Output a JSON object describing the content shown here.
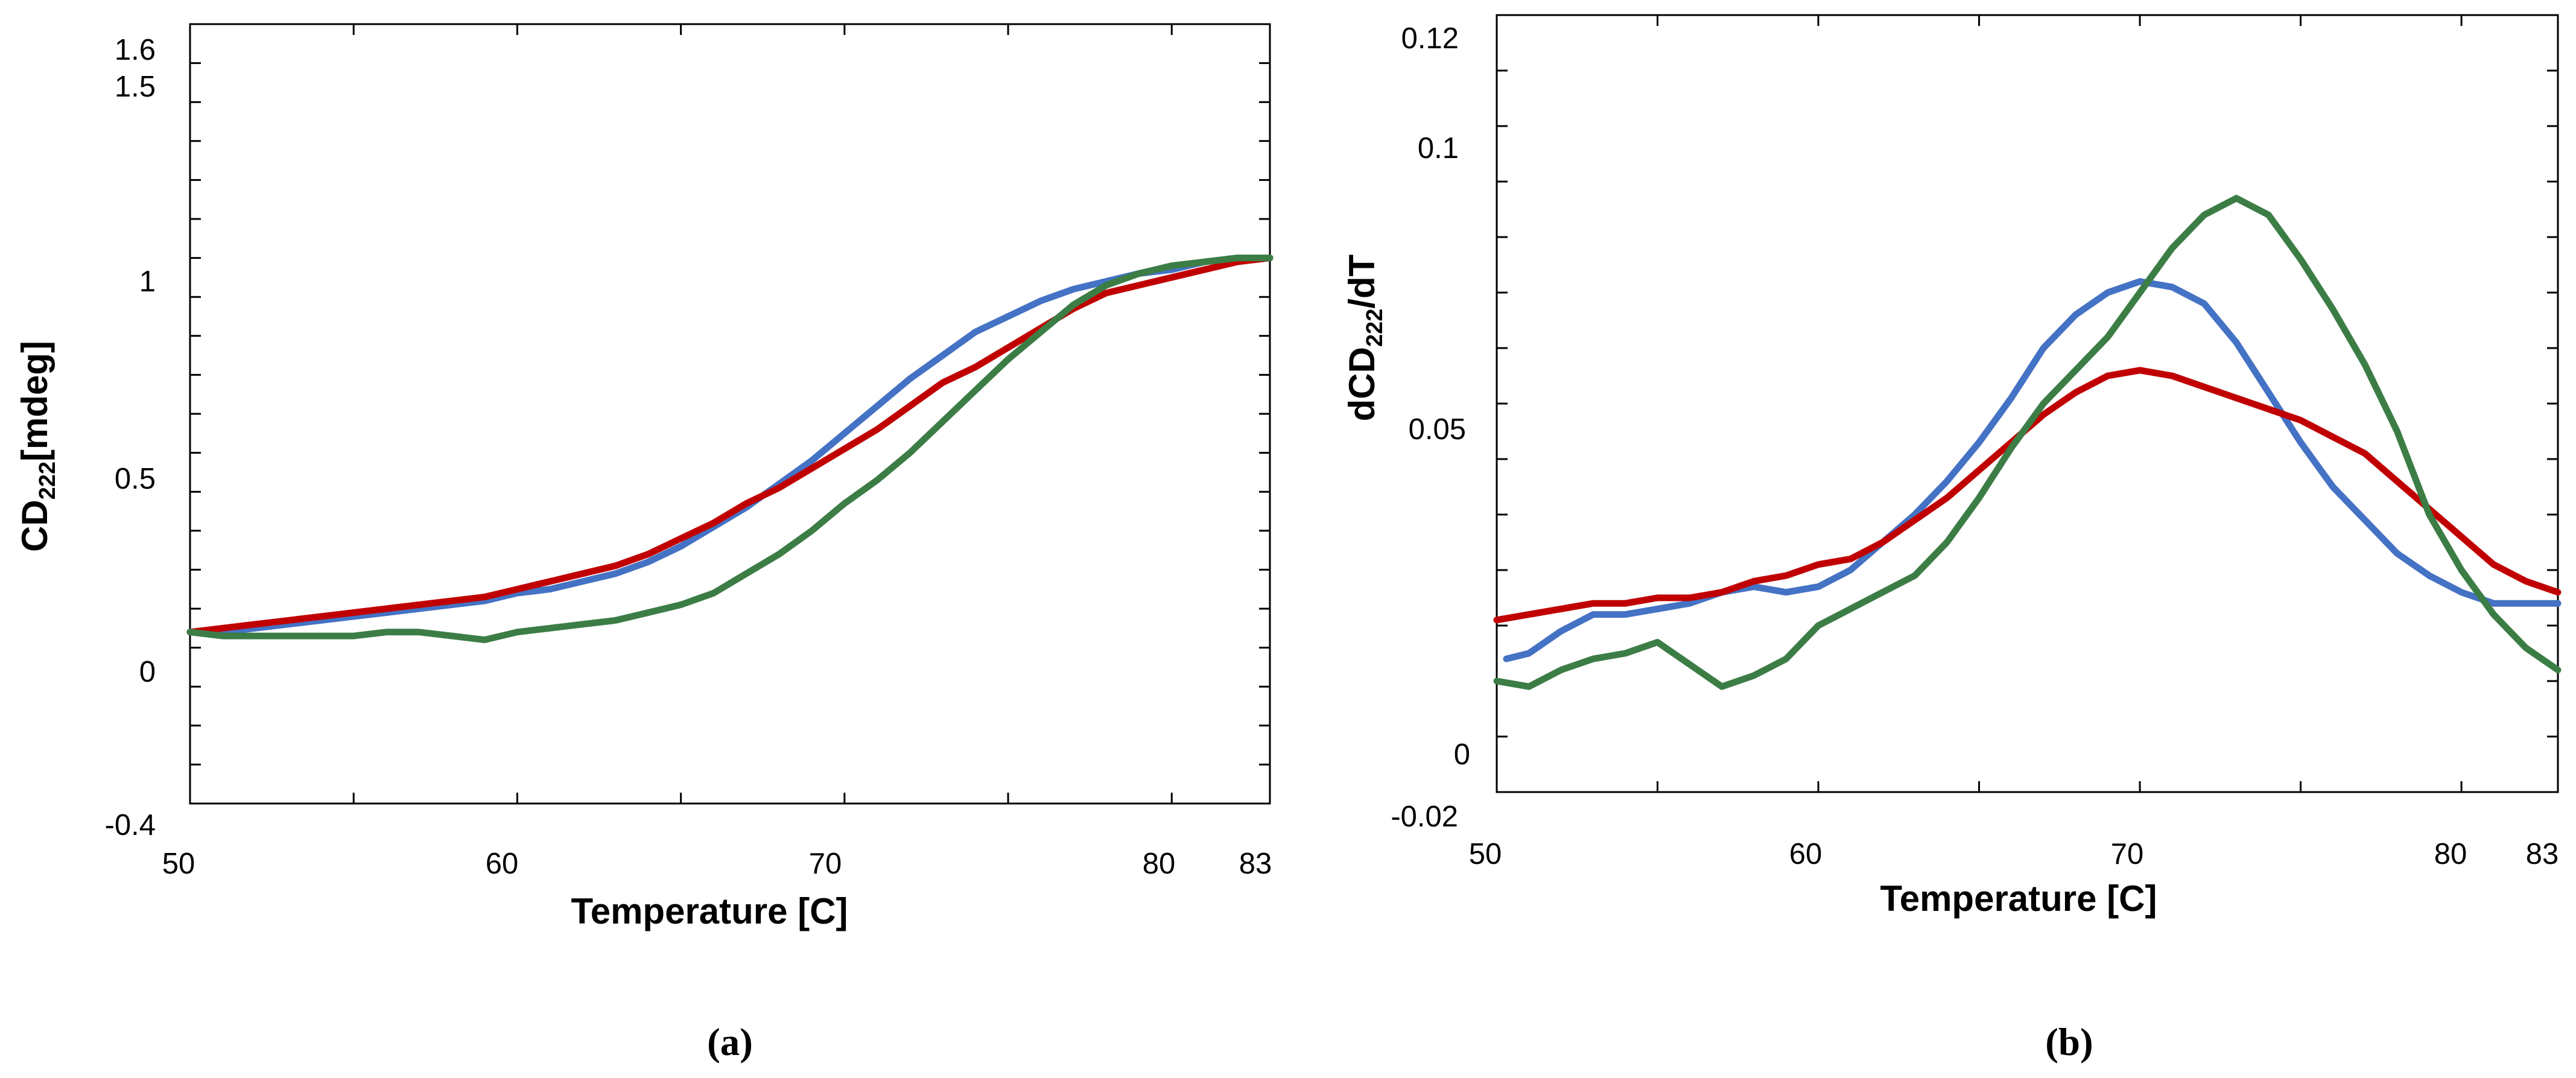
{
  "chart_data": [
    {
      "panel_label": "(a)",
      "type": "line",
      "xlabel": "Temperature [C]",
      "ylabel_main": "CD",
      "ylabel_sub": "222",
      "ylabel_tail": "[mdeg]",
      "xlim": [
        50,
        83
      ],
      "ylim": [
        -0.4,
        1.6
      ],
      "x_tick_labels": [
        "50",
        "60",
        "70",
        "80",
        "83"
      ],
      "y_tick_labels": [
        "-0.4",
        "0",
        "0.5",
        "1",
        "1.5",
        "1.6"
      ],
      "series": [
        {
          "color": "#4472c4",
          "x": [
            50,
            51,
            52,
            53,
            54,
            55,
            56,
            57,
            58,
            59,
            60,
            61,
            62,
            63,
            64,
            65,
            66,
            67,
            68,
            69,
            70,
            71,
            72,
            73,
            74,
            75,
            76,
            77,
            78,
            79,
            80,
            81,
            82,
            83
          ],
          "y": [
            0.04,
            0.04,
            0.05,
            0.06,
            0.07,
            0.08,
            0.09,
            0.1,
            0.11,
            0.12,
            0.14,
            0.15,
            0.17,
            0.19,
            0.22,
            0.26,
            0.31,
            0.36,
            0.42,
            0.48,
            0.55,
            0.62,
            0.69,
            0.75,
            0.81,
            0.85,
            0.89,
            0.92,
            0.94,
            0.96,
            0.97,
            0.99,
            1.0,
            1.0
          ]
        },
        {
          "color": "#c00000",
          "x": [
            50,
            51,
            52,
            53,
            54,
            55,
            56,
            57,
            58,
            59,
            60,
            61,
            62,
            63,
            64,
            65,
            66,
            67,
            68,
            69,
            70,
            71,
            72,
            73,
            74,
            75,
            76,
            77,
            78,
            79,
            80,
            81,
            82,
            83
          ],
          "y": [
            0.04,
            0.05,
            0.06,
            0.07,
            0.08,
            0.09,
            0.1,
            0.11,
            0.12,
            0.13,
            0.15,
            0.17,
            0.19,
            0.21,
            0.24,
            0.28,
            0.32,
            0.37,
            0.41,
            0.46,
            0.51,
            0.56,
            0.62,
            0.68,
            0.72,
            0.77,
            0.82,
            0.87,
            0.91,
            0.93,
            0.95,
            0.97,
            0.99,
            1.0
          ]
        },
        {
          "color": "#3c7d46",
          "x": [
            50,
            51,
            52,
            53,
            54,
            55,
            56,
            57,
            58,
            59,
            60,
            61,
            62,
            63,
            64,
            65,
            66,
            67,
            68,
            69,
            70,
            71,
            72,
            73,
            74,
            75,
            76,
            77,
            78,
            79,
            80,
            81,
            82,
            83
          ],
          "y": [
            0.04,
            0.03,
            0.03,
            0.03,
            0.03,
            0.03,
            0.04,
            0.04,
            0.03,
            0.02,
            0.04,
            0.05,
            0.06,
            0.07,
            0.09,
            0.11,
            0.14,
            0.19,
            0.24,
            0.3,
            0.37,
            0.43,
            0.5,
            0.58,
            0.66,
            0.74,
            0.81,
            0.88,
            0.93,
            0.96,
            0.98,
            0.99,
            1.0,
            1.0
          ]
        }
      ]
    },
    {
      "panel_label": "(b)",
      "type": "line",
      "xlabel": "Temperature [C]",
      "ylabel_main": "dCD",
      "ylabel_sub": "222",
      "ylabel_tail": "/dT",
      "xlim": [
        50,
        83
      ],
      "ylim": [
        -0.02,
        0.12
      ],
      "x_tick_labels": [
        "50",
        "60",
        "70",
        "80",
        "83"
      ],
      "y_tick_labels": [
        "-0.02",
        "0",
        "0.05",
        "0.1",
        "0.12"
      ],
      "series": [
        {
          "color": "#4472c4",
          "x": [
            50.3,
            51,
            52,
            53,
            54,
            55,
            56,
            57,
            58,
            59,
            60,
            61,
            62,
            63,
            64,
            65,
            66,
            67,
            68,
            69,
            70,
            71,
            72,
            73,
            74,
            75,
            76,
            77,
            78,
            79,
            80,
            81,
            82,
            83
          ],
          "y": [
            0.004,
            0.005,
            0.009,
            0.012,
            0.012,
            0.013,
            0.014,
            0.016,
            0.017,
            0.016,
            0.017,
            0.02,
            0.025,
            0.03,
            0.036,
            0.043,
            0.051,
            0.06,
            0.066,
            0.07,
            0.072,
            0.071,
            0.068,
            0.061,
            0.052,
            0.043,
            0.035,
            0.029,
            0.023,
            0.019,
            0.016,
            0.014,
            0.014,
            0.014
          ]
        },
        {
          "color": "#c00000",
          "x": [
            50,
            51,
            52,
            53,
            54,
            55,
            56,
            57,
            58,
            59,
            60,
            61,
            62,
            63,
            64,
            65,
            66,
            67,
            68,
            69,
            70,
            71,
            72,
            73,
            74,
            75,
            76,
            77,
            78,
            79,
            80,
            81,
            82,
            83
          ],
          "y": [
            0.011,
            0.012,
            0.013,
            0.014,
            0.014,
            0.015,
            0.015,
            0.016,
            0.018,
            0.019,
            0.021,
            0.022,
            0.025,
            0.029,
            0.033,
            0.038,
            0.043,
            0.048,
            0.052,
            0.055,
            0.056,
            0.055,
            0.053,
            0.051,
            0.049,
            0.047,
            0.044,
            0.041,
            0.036,
            0.031,
            0.026,
            0.021,
            0.018,
            0.016
          ]
        },
        {
          "color": "#3c7d46",
          "x": [
            50,
            51,
            52,
            53,
            54,
            55,
            56,
            57,
            58,
            59,
            60,
            61,
            62,
            63,
            64,
            65,
            66,
            67,
            68,
            69,
            70,
            71,
            72,
            73,
            74,
            75,
            76,
            77,
            78,
            79,
            80,
            81,
            82,
            83
          ],
          "y": [
            0.0,
            -0.001,
            0.002,
            0.004,
            0.005,
            0.007,
            0.003,
            -0.001,
            0.001,
            0.004,
            0.01,
            0.013,
            0.016,
            0.019,
            0.025,
            0.033,
            0.042,
            0.05,
            0.056,
            0.062,
            0.07,
            0.078,
            0.084,
            0.087,
            0.084,
            0.076,
            0.067,
            0.057,
            0.045,
            0.03,
            0.02,
            0.012,
            0.006,
            0.002
          ]
        }
      ]
    }
  ]
}
